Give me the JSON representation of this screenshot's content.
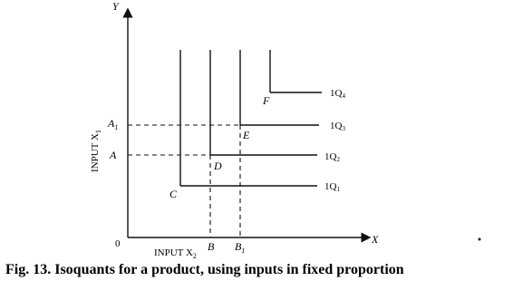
{
  "axes": {
    "y_label": "Y",
    "x_label": "X",
    "origin": "0",
    "y_title": {
      "main": "INPUT X",
      "sub": "1"
    },
    "x_title": {
      "main": "INPUT X",
      "sub": "2"
    }
  },
  "points": {
    "A1": {
      "main": "A",
      "sub": "1"
    },
    "A": "A",
    "B": "B",
    "B1": {
      "main": "B",
      "sub": "1"
    },
    "C": "C",
    "D": "D",
    "E": "E",
    "F": "F"
  },
  "isoquants": [
    {
      "main": "1Q",
      "sub": "1"
    },
    {
      "main": "1Q",
      "sub": "2"
    },
    {
      "main": "1Q",
      "sub": "3"
    },
    {
      "main": "1Q",
      "sub": "4"
    }
  ],
  "caption": "Fig. 13. Isoquants for a product, using inputs in fixed proportion"
}
